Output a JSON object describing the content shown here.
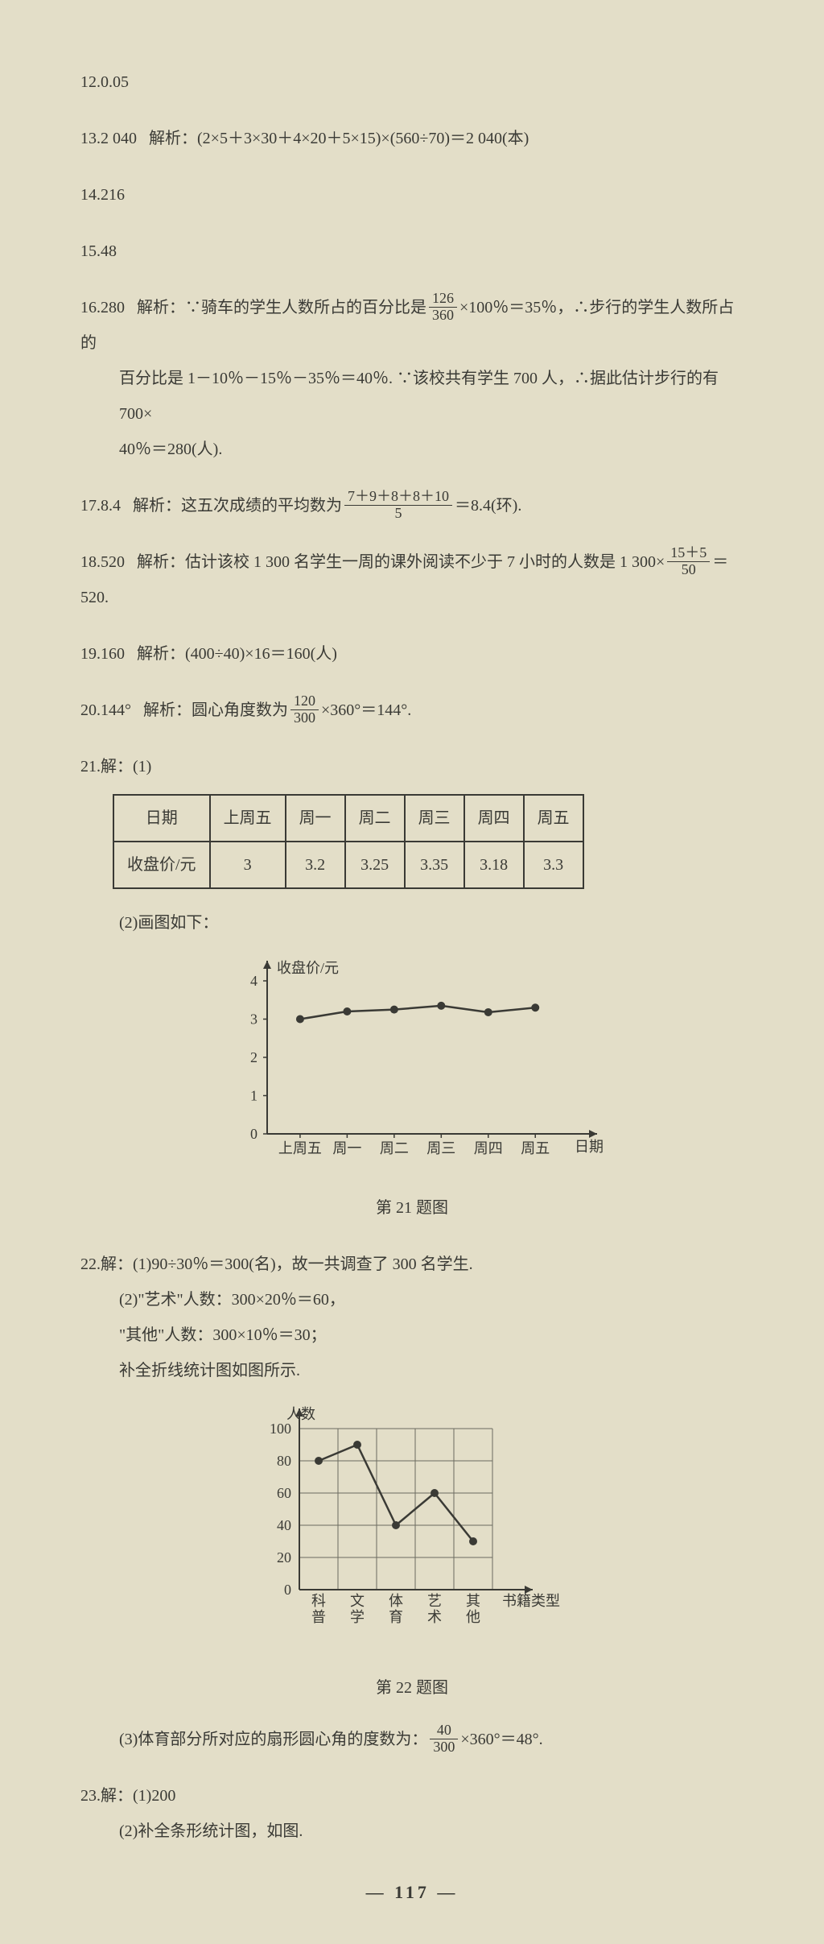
{
  "q12": {
    "label": "12.",
    "answer": "0.05"
  },
  "q13": {
    "label": "13.",
    "answer": "2 040",
    "explain_prefix": "解析：",
    "explain": "(2×5＋3×30＋4×20＋5×15)×(560÷70)＝2 040(本)"
  },
  "q14": {
    "label": "14.",
    "answer": "216"
  },
  "q15": {
    "label": "15.",
    "answer": "48"
  },
  "q16": {
    "label": "16.",
    "answer": "280",
    "explain_prefix": "解析：",
    "line1a": "∵骑车的学生人数所占的百分比是",
    "frac1_num": "126",
    "frac1_den": "360",
    "line1b": "×100％＝35％，∴步行的学生人数所占的",
    "line2": "百分比是 1－10％－15％－35％＝40％. ∵该校共有学生 700 人，∴据此估计步行的有 700×",
    "line3": "40％＝280(人)."
  },
  "q17": {
    "label": "17.",
    "answer": "8.4",
    "explain_prefix": "解析：",
    "pre": "这五次成绩的平均数为",
    "frac_num": "7＋9＋8＋8＋10",
    "frac_den": "5",
    "post": "＝8.4(环)."
  },
  "q18": {
    "label": "18.",
    "answer": "520",
    "explain_prefix": "解析：",
    "pre": "估计该校 1 300 名学生一周的课外阅读不少于 7 小时的人数是 1 300×",
    "frac_num": "15＋5",
    "frac_den": "50",
    "post": "＝520."
  },
  "q19": {
    "label": "19.",
    "answer": "160",
    "explain_prefix": "解析：",
    "explain": "(400÷40)×16＝160(人)"
  },
  "q20": {
    "label": "20.",
    "answer": "144°",
    "explain_prefix": "解析：",
    "pre": "圆心角度数为",
    "frac_num": "120",
    "frac_den": "300",
    "post": "×360°＝144°."
  },
  "q21": {
    "label": "21.",
    "head": "解：(1)",
    "table": {
      "header": [
        "日期",
        "上周五",
        "周一",
        "周二",
        "周三",
        "周四",
        "周五"
      ],
      "row_label": "收盘价/元",
      "row": [
        "3",
        "3.2",
        "3.25",
        "3.35",
        "3.18",
        "3.3"
      ]
    },
    "part2_label": "(2)画图如下：",
    "chart": {
      "type": "line",
      "y_label": "收盘价/元",
      "x_label_text": "日期",
      "x_labels": [
        "上周五",
        "周一",
        "周二",
        "周三",
        "周四",
        "周五"
      ],
      "y_ticks": [
        0,
        1,
        2,
        3,
        4
      ],
      "values": [
        3.0,
        3.2,
        3.25,
        3.35,
        3.18,
        3.3
      ],
      "line_color": "#3a3a35",
      "point_color": "#3a3a35",
      "bg": "#e3dec8",
      "caption": "第 21 题图",
      "y_max": 4,
      "axis_fontsize": 18
    }
  },
  "q22": {
    "label": "22.",
    "head": "解：(1)90÷30％＝300(名)，故一共调查了 300 名学生.",
    "line2": "(2)\"艺术\"人数：300×20％＝60，",
    "line3": "\"其他\"人数：300×10％＝30；",
    "line4": "补全折线统计图如图所示.",
    "chart": {
      "type": "line-grid",
      "y_label": "人数",
      "x_label_text": "书籍类型",
      "x_labels": [
        "科普",
        "文学",
        "体育",
        "艺术",
        "其他"
      ],
      "y_ticks": [
        0,
        20,
        40,
        60,
        80,
        100
      ],
      "values": [
        80,
        90,
        40,
        60,
        30
      ],
      "line_color": "#3a3a35",
      "point_color": "#3a3a35",
      "grid_color": "#6b6b60",
      "bg": "#e3dec8",
      "caption": "第 22 题图",
      "y_max": 100,
      "axis_fontsize": 18
    },
    "line5_pre": "(3)体育部分所对应的扇形圆心角的度数为：",
    "line5_num": "40",
    "line5_den": "300",
    "line5_post": "×360°＝48°."
  },
  "q23": {
    "label": "23.",
    "head": "解：(1)200",
    "line2": "(2)补全条形统计图，如图."
  },
  "page_num": "—  117  —"
}
